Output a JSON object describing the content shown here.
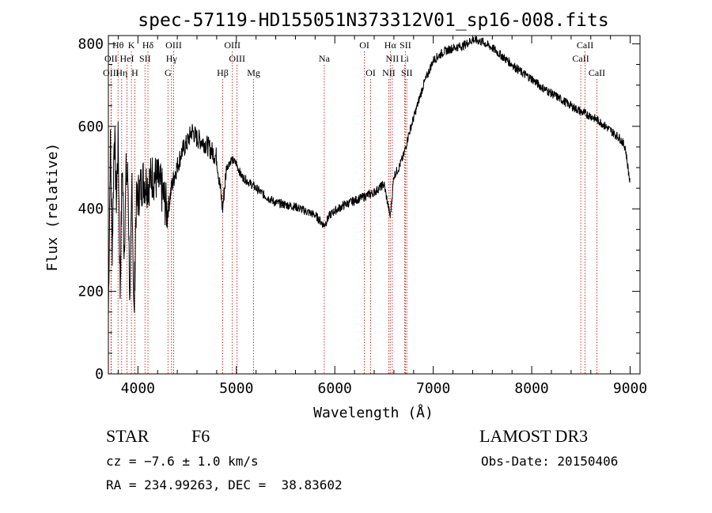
{
  "chart_data": {
    "type": "line",
    "title": "spec-57119-HD155051N373312V01_sp16-008.fits",
    "xlabel": "Wavelength (Å)",
    "ylabel": "Flux (relative)",
    "xlim": [
      3700,
      9100
    ],
    "ylim": [
      0,
      820
    ],
    "x_ticks": [
      4000,
      5000,
      6000,
      7000,
      8000,
      9000
    ],
    "x_tick_labels": [
      "4000",
      "5000",
      "6000",
      "7000",
      "8000",
      "9000"
    ],
    "y_ticks": [
      0,
      200,
      400,
      600,
      800
    ],
    "y_tick_labels": [
      "0",
      "200",
      "400",
      "600",
      "800"
    ],
    "series": [
      {
        "name": "flux",
        "x": [
          3700,
          3720,
          3740,
          3760,
          3780,
          3800,
          3820,
          3840,
          3860,
          3880,
          3900,
          3920,
          3940,
          3960,
          3980,
          4000,
          4050,
          4100,
          4150,
          4200,
          4250,
          4300,
          4340,
          4380,
          4450,
          4500,
          4550,
          4600,
          4650,
          4700,
          4750,
          4800,
          4860,
          4900,
          4950,
          5000,
          5050,
          5100,
          5150,
          5200,
          5300,
          5400,
          5500,
          5600,
          5700,
          5800,
          5890,
          5950,
          6000,
          6100,
          6200,
          6300,
          6400,
          6500,
          6563,
          6600,
          6650,
          6700,
          6750,
          6800,
          6900,
          7000,
          7100,
          7200,
          7300,
          7400,
          7500,
          7600,
          7700,
          7800,
          7900,
          8000,
          8100,
          8200,
          8300,
          8400,
          8500,
          8600,
          8700,
          8800,
          8900,
          8950,
          9000
        ],
        "y": [
          140,
          560,
          300,
          600,
          420,
          560,
          200,
          520,
          300,
          480,
          470,
          140,
          480,
          120,
          400,
          430,
          470,
          460,
          480,
          470,
          440,
          390,
          450,
          490,
          540,
          560,
          590,
          570,
          565,
          555,
          540,
          525,
          400,
          500,
          520,
          510,
          480,
          470,
          460,
          450,
          430,
          415,
          410,
          405,
          395,
          385,
          360,
          385,
          395,
          410,
          420,
          430,
          440,
          460,
          380,
          480,
          500,
          530,
          580,
          620,
          700,
          760,
          780,
          790,
          795,
          810,
          805,
          790,
          770,
          750,
          730,
          715,
          695,
          680,
          665,
          650,
          635,
          625,
          610,
          590,
          570,
          550,
          460
        ]
      }
    ],
    "line_markers": [
      {
        "label": "Hθ",
        "x": 3798,
        "row": 1
      },
      {
        "label": "K",
        "x": 3934,
        "row": 1
      },
      {
        "label": "Hδ",
        "x": 4102,
        "row": 1
      },
      {
        "label": "OIII",
        "x": 4363,
        "row": 1
      },
      {
        "label": "OIII",
        "x": 4959,
        "row": 1
      },
      {
        "label": "OI",
        "x": 6300,
        "row": 1
      },
      {
        "label": "Hα",
        "x": 6563,
        "row": 1
      },
      {
        "label": "SII",
        "x": 6717,
        "row": 1
      },
      {
        "label": "CaII",
        "x": 8542,
        "row": 1
      },
      {
        "label": "OII",
        "x": 3727,
        "row": 2
      },
      {
        "label": "HeI",
        "x": 3889,
        "row": 2
      },
      {
        "label": "SII",
        "x": 4072,
        "row": 2
      },
      {
        "label": "Hγ",
        "x": 4341,
        "row": 2
      },
      {
        "label": "OIII",
        "x": 5007,
        "row": 2
      },
      {
        "label": "Na",
        "x": 5893,
        "row": 2
      },
      {
        "label": "NII",
        "x": 6584,
        "row": 2
      },
      {
        "label": "Li",
        "x": 6708,
        "row": 2
      },
      {
        "label": "CaII",
        "x": 8498,
        "row": 2
      },
      {
        "label": "OIII",
        "x": 3727,
        "row": 3
      },
      {
        "label": "Hη",
        "x": 3835,
        "row": 3
      },
      {
        "label": "H",
        "x": 3969,
        "row": 3
      },
      {
        "label": "G",
        "x": 4305,
        "row": 3
      },
      {
        "label": "Hβ",
        "x": 4861,
        "row": 3
      },
      {
        "label": "Mg",
        "x": 5175,
        "row": 3
      },
      {
        "label": "OI",
        "x": 6364,
        "row": 3
      },
      {
        "label": "NII",
        "x": 6548,
        "row": 3
      },
      {
        "label": "SII",
        "x": 6731,
        "row": 3
      },
      {
        "label": "CaII",
        "x": 8662,
        "row": 3
      }
    ]
  },
  "info": {
    "class_label": "STAR",
    "subclass": "F6",
    "cz": "cz = −7.6 ± 1.0 km/s",
    "radec": "RA = 234.99263, DEC =  38.83602",
    "survey": "LAMOST DR3",
    "obs_date": "Obs-Date: 20150406"
  }
}
